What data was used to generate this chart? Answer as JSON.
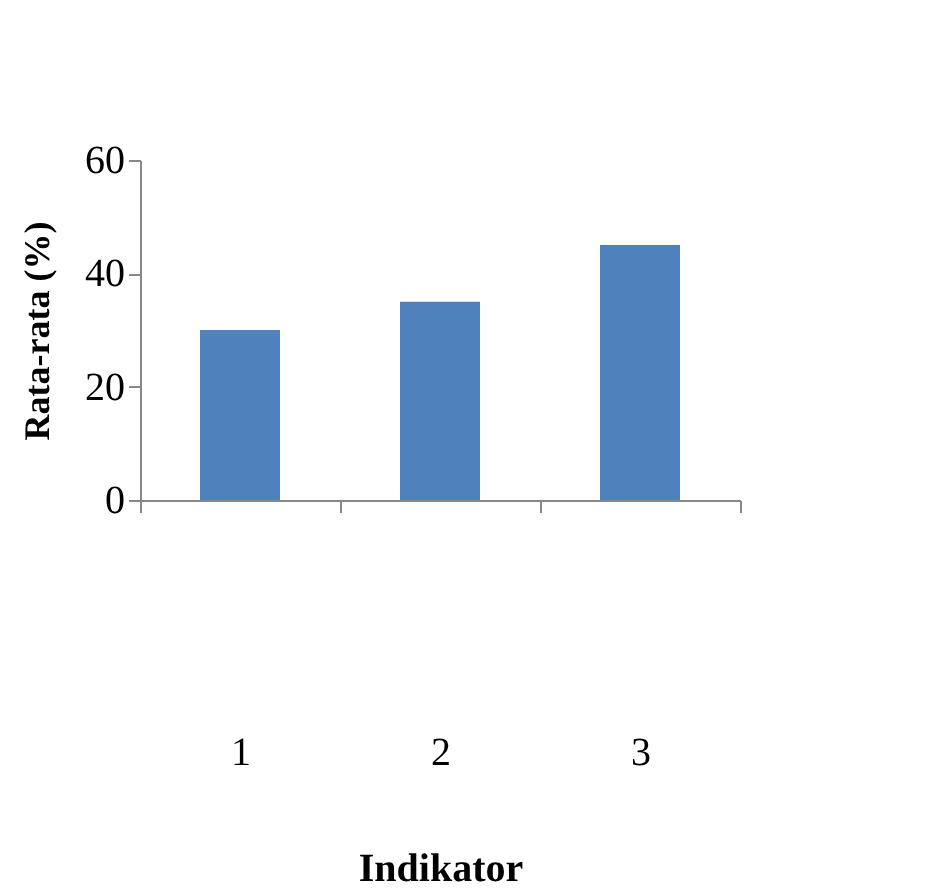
{
  "chart_data": {
    "type": "bar",
    "xlabel": "Indikator",
    "ylabel": "Rata-rata (%)",
    "categories": [
      "1",
      "2",
      "3"
    ],
    "series": [
      {
        "color": "#4f81bd",
        "values": [
          30,
          35,
          45
        ]
      }
    ],
    "ylim": [
      0,
      60
    ],
    "yticks": [
      0,
      20,
      40,
      60
    ],
    "grid": false,
    "legend": false
  }
}
